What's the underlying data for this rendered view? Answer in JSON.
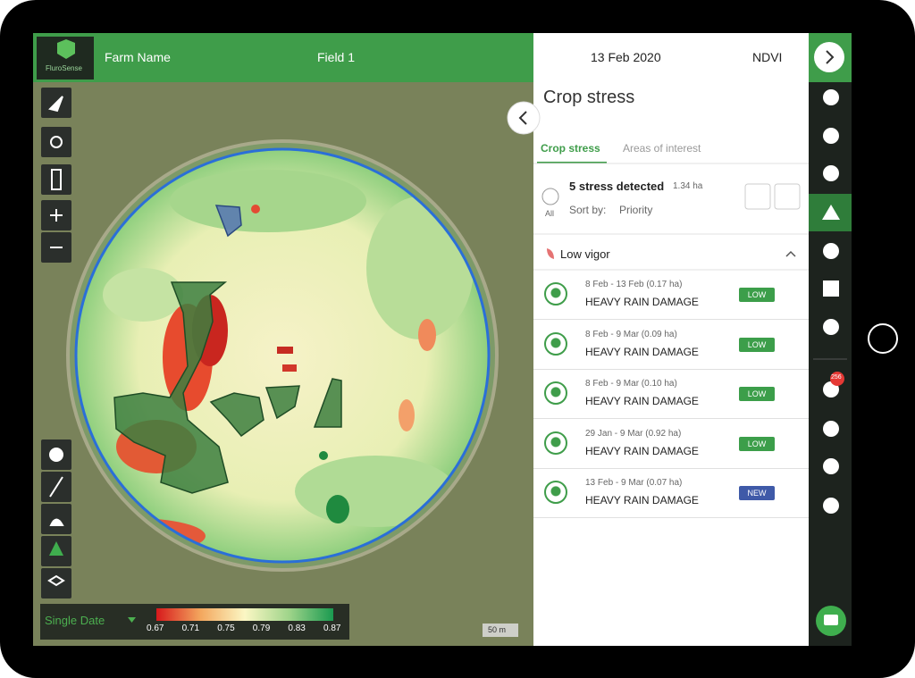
{
  "app": {
    "brand": "FluroSense",
    "farm": "Farm Name",
    "field": "Field 1"
  },
  "panel": {
    "date": "13 Feb 2020",
    "layer": "NDVI",
    "title": "Crop stress",
    "tabs": [
      "Crop stress",
      "Areas of interest"
    ],
    "summary": {
      "count": "5 stress detected",
      "area": "1.34 ha",
      "all": "All",
      "sort_label": "Sort by:",
      "sort_value": "Priority"
    },
    "group": "Low vigor",
    "items": [
      {
        "dates": "8 Feb - 13 Feb (0.17 ha)",
        "title": "HEAVY RAIN DAMAGE",
        "badge": "LOW",
        "color": "#3c9e4a"
      },
      {
        "dates": "8 Feb - 9 Mar (0.09 ha)",
        "title": "HEAVY RAIN DAMAGE",
        "badge": "LOW",
        "color": "#3c9e4a"
      },
      {
        "dates": "8 Feb - 9 Mar (0.10 ha)",
        "title": "HEAVY RAIN DAMAGE",
        "badge": "LOW",
        "color": "#3c9e4a"
      },
      {
        "dates": "29 Jan - 9 Mar (0.92 ha)",
        "title": "HEAVY RAIN DAMAGE",
        "badge": "LOW",
        "color": "#3c9e4a"
      },
      {
        "dates": "13 Feb - 9 Mar (0.07 ha)",
        "title": "HEAVY RAIN DAMAGE",
        "badge": "NEW",
        "color": "#3f5aa8"
      }
    ]
  },
  "map": {
    "legend": {
      "mode": "Single Date",
      "ticks": [
        "0.67",
        "0.71",
        "0.75",
        "0.79",
        "0.83",
        "0.87"
      ]
    },
    "scale": "50 m"
  },
  "sidebar": {
    "notifications": "256"
  }
}
